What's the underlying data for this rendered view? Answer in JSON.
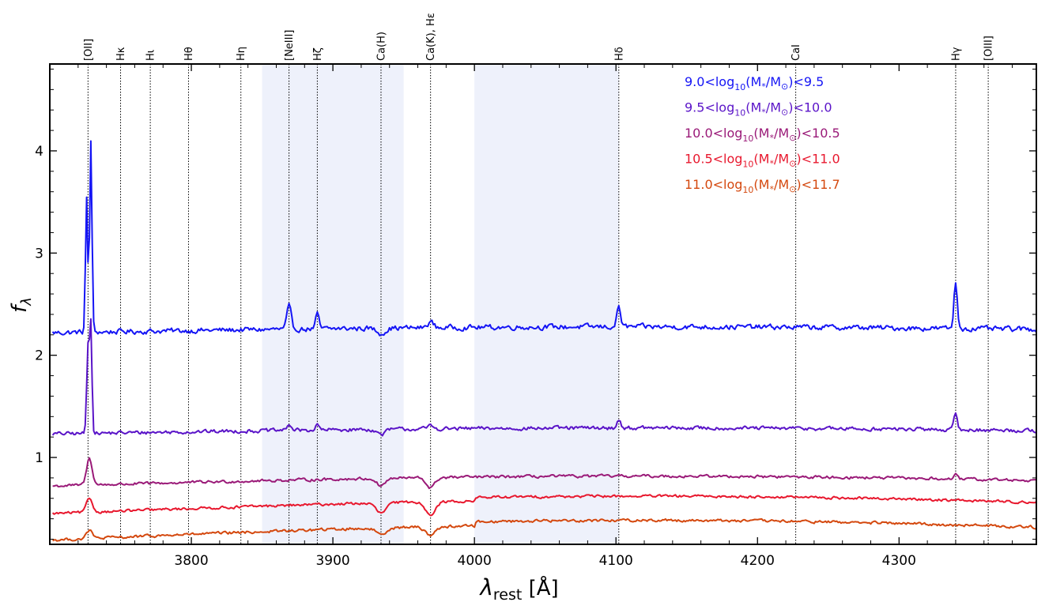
{
  "chart_data": {
    "type": "line",
    "xlabel": "λ",
    "xlabel_sub": "rest",
    "xlabel_unit": " [Å]",
    "ylabel": "f",
    "ylabel_sub": "λ",
    "xlim": [
      3700,
      4397
    ],
    "ylim": [
      0.15,
      4.85
    ],
    "x_ticks": [
      3800,
      3900,
      4000,
      4100,
      4200,
      4300
    ],
    "y_ticks": [
      1,
      2,
      3,
      4
    ],
    "shaded_regions": [
      [
        3850,
        3950
      ],
      [
        4000,
        4102
      ]
    ],
    "shade_color": "#eef1fb",
    "spectral_lines": [
      {
        "label": "[OII]",
        "x": 3727
      },
      {
        "label": "Hκ",
        "x": 3750
      },
      {
        "label": "Hι",
        "x": 3771
      },
      {
        "label": "Hθ",
        "x": 3798
      },
      {
        "label": "Hη",
        "x": 3835
      },
      {
        "label": "[NeIII]",
        "x": 3869
      },
      {
        "label": "Hζ",
        "x": 3889
      },
      {
        "label": "Ca(H)",
        "x": 3934
      },
      {
        "label": "Ca(K), Hε",
        "x": 3969
      },
      {
        "label": "Hδ",
        "x": 4102
      },
      {
        "label": "CaI",
        "x": 4227
      },
      {
        "label": "Hγ",
        "x": 4340
      },
      {
        "label": "[OIII]",
        "x": 4363
      }
    ],
    "legend_position": "top-right",
    "series": [
      {
        "name": "9.0<log10(M*/M⊙)<9.5",
        "name_parts": [
          "9.0<log",
          "10",
          "(M",
          "*",
          "/M",
          "⊙",
          ")<9.5"
        ],
        "color": "#1515f5",
        "baseline": 2.22,
        "slope": 0.06,
        "noise": 0.022,
        "features": [
          {
            "x": 3726,
            "amp": 1.3,
            "w": 0.8
          },
          {
            "x": 3729,
            "amp": 1.88,
            "w": 0.8
          },
          {
            "x": 3869,
            "amp": 0.22,
            "w": 1.5
          },
          {
            "x": 3889,
            "amp": 0.14,
            "w": 1.2
          },
          {
            "x": 3934,
            "amp": -0.05,
            "w": 3
          },
          {
            "x": 3969,
            "amp": 0.06,
            "w": 2
          },
          {
            "x": 4102,
            "amp": 0.2,
            "w": 1.3
          },
          {
            "x": 4340,
            "amp": 0.45,
            "w": 1.2
          }
        ]
      },
      {
        "name": "9.5<log10(M*/M⊙)<10.0",
        "name_parts": [
          "9.5<log",
          "10",
          "(M",
          "*",
          "/M",
          "⊙",
          ")<10.0"
        ],
        "color": "#5a14c8",
        "baseline": 1.23,
        "slope": 0.06,
        "noise": 0.016,
        "features": [
          {
            "x": 3727,
            "amp": 0.85,
            "w": 0.9
          },
          {
            "x": 3729,
            "amp": 1.05,
            "w": 0.8
          },
          {
            "x": 3869,
            "amp": 0.06,
            "w": 1.5
          },
          {
            "x": 3889,
            "amp": 0.05,
            "w": 1.2
          },
          {
            "x": 3934,
            "amp": -0.05,
            "w": 3
          },
          {
            "x": 3969,
            "amp": 0.03,
            "w": 2
          },
          {
            "x": 4102,
            "amp": 0.08,
            "w": 1.3
          },
          {
            "x": 4340,
            "amp": 0.15,
            "w": 1.2
          }
        ]
      },
      {
        "name": "10.0<log10(M*/M⊙)<10.5",
        "name_parts": [
          "10.0<log",
          "10",
          "(M",
          "*",
          "/M",
          "⊙",
          ")<10.5"
        ],
        "color": "#9a1a78",
        "baseline": 0.72,
        "slope": 0.1,
        "noise": 0.012,
        "features": [
          {
            "x": 3728,
            "amp": 0.26,
            "w": 2
          },
          {
            "x": 3934,
            "amp": -0.07,
            "w": 3
          },
          {
            "x": 3969,
            "amp": -0.1,
            "w": 3
          },
          {
            "x": 4340,
            "amp": 0.04,
            "w": 1.2
          }
        ]
      },
      {
        "name": "10.5<log10(M*/M⊙)<11.0",
        "name_parts": [
          "10.5<log",
          "10",
          "(M",
          "*",
          "/M",
          "⊙",
          ")<11.0"
        ],
        "color": "#e8182e",
        "baseline": 0.45,
        "slope": 0.14,
        "noise": 0.011,
        "features": [
          {
            "x": 3728,
            "amp": 0.14,
            "w": 2
          },
          {
            "x": 3934,
            "amp": -0.1,
            "w": 3.5
          },
          {
            "x": 3969,
            "amp": -0.12,
            "w": 3.5
          }
        ]
      },
      {
        "name": "11.0<log10(M*/M⊙)<11.7",
        "name_parts": [
          "11.0<log",
          "10",
          "(M",
          "*",
          "/M",
          "⊙",
          ")<11.7"
        ],
        "color": "#d4480e",
        "baseline": 0.19,
        "slope": 0.16,
        "noise": 0.012,
        "features": [
          {
            "x": 3728,
            "amp": 0.08,
            "w": 2
          },
          {
            "x": 3934,
            "amp": -0.06,
            "w": 3.5
          },
          {
            "x": 3969,
            "amp": -0.08,
            "w": 3.5
          }
        ]
      }
    ]
  }
}
